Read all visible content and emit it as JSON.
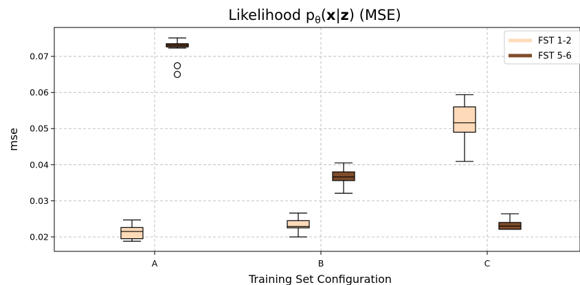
{
  "chart_data": {
    "type": "box",
    "title": {
      "prefix": "Likelihood p",
      "subscript": "θ",
      "paren_open": "(",
      "bold_x": "x",
      "bar": "|",
      "bold_z": "z",
      "suffix": ") (MSE)"
    },
    "xlabel": "Training Set Configuration",
    "ylabel": "mse",
    "categories": [
      "A",
      "B",
      "C"
    ],
    "ylim": [
      0.016,
      0.078
    ],
    "yticks": [
      0.02,
      0.03,
      0.04,
      0.05,
      0.06,
      0.07
    ],
    "ytick_labels": [
      "0.02",
      "0.03",
      "0.04",
      "0.05",
      "0.06",
      "0.07"
    ],
    "grid": true,
    "legend_position": "top-right",
    "series": [
      {
        "name": "FST 1-2",
        "color": "#ffdab9",
        "boxes": [
          {
            "category": "A",
            "whislo": 0.0188,
            "q1": 0.0195,
            "med": 0.0215,
            "q3": 0.0226,
            "whishi": 0.0247,
            "fliers": []
          },
          {
            "category": "B",
            "whislo": 0.02,
            "q1": 0.0225,
            "med": 0.0229,
            "q3": 0.0245,
            "whishi": 0.0266,
            "fliers": []
          },
          {
            "category": "C",
            "whislo": 0.0409,
            "q1": 0.049,
            "med": 0.0516,
            "q3": 0.056,
            "whishi": 0.0594,
            "fliers": []
          }
        ]
      },
      {
        "name": "FST 5-6",
        "color": "#7f4c2a",
        "boxes": [
          {
            "category": "A",
            "whislo": 0.0723,
            "q1": 0.0726,
            "med": 0.0731,
            "q3": 0.0735,
            "whishi": 0.0751,
            "fliers": [
              0.0674,
              0.065
            ]
          },
          {
            "category": "B",
            "whislo": 0.0321,
            "q1": 0.0356,
            "med": 0.0366,
            "q3": 0.038,
            "whishi": 0.0405,
            "fliers": []
          },
          {
            "category": "C",
            "whislo": 0.0221,
            "q1": 0.0221,
            "med": 0.023,
            "q3": 0.024,
            "whishi": 0.0264,
            "fliers": []
          }
        ]
      }
    ]
  }
}
